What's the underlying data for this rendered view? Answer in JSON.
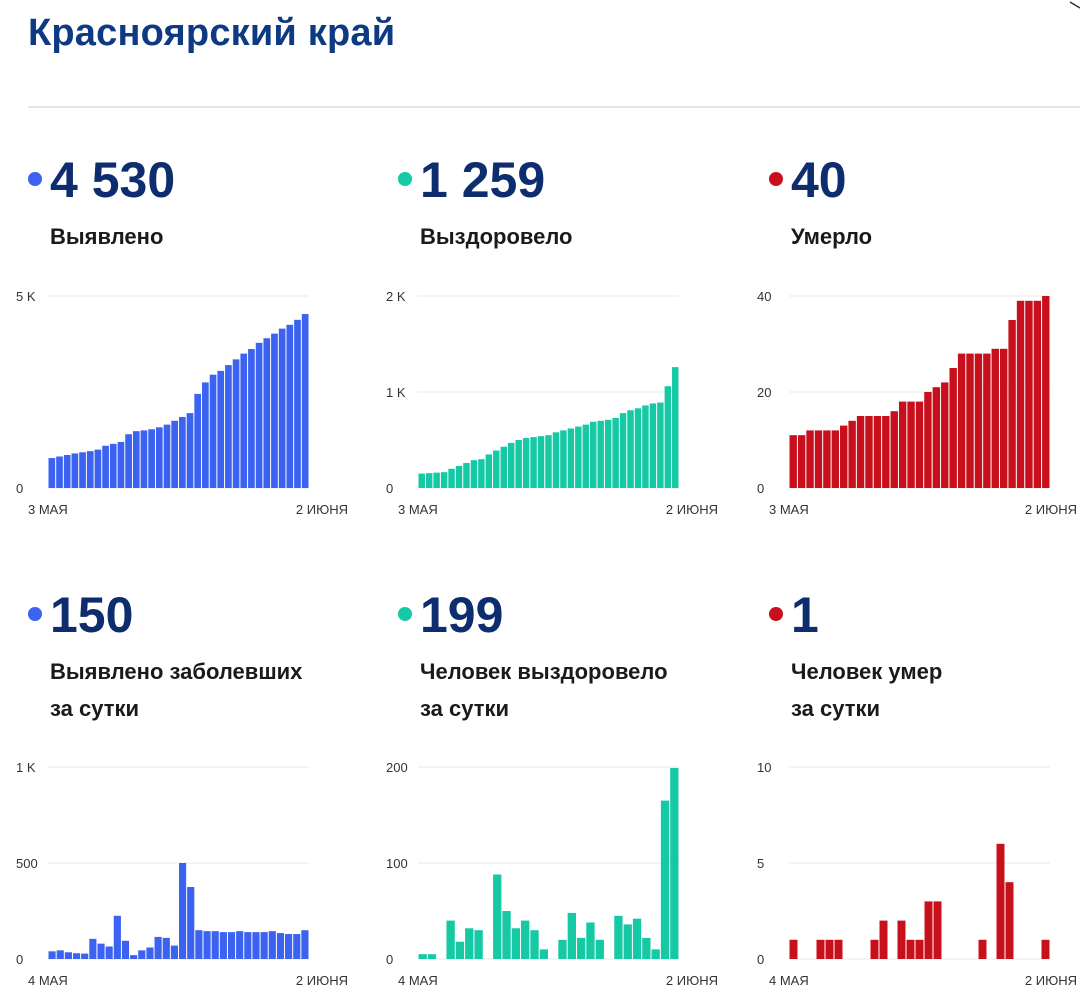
{
  "header": {
    "title": "Красноярский край"
  },
  "colors": {
    "confirmed": "#3b62f0",
    "recovered": "#14c9a3",
    "deaths": "#c8101c",
    "title": "#0d3a82",
    "value": "#0d2d6e"
  },
  "stats": [
    {
      "value": "4 530",
      "label": "Выявлено",
      "color": "#3b62f0",
      "dot_icon": "blue-dot-icon"
    },
    {
      "value": "1 259",
      "label": "Выздоровело",
      "color": "#14c9a3",
      "dot_icon": "green-dot-icon"
    },
    {
      "value": "40",
      "label": "Умерло",
      "color": "#c8101c",
      "dot_icon": "red-dot-icon"
    },
    {
      "value": "150",
      "label": "Выявлено заболевших\nза сутки",
      "color": "#3b62f0",
      "dot_icon": "blue-dot-icon"
    },
    {
      "value": "199",
      "label": "Человек выздоровело\nза сутки",
      "color": "#14c9a3",
      "dot_icon": "green-dot-icon"
    },
    {
      "value": "1",
      "label": "Человек умер\nза сутки",
      "color": "#c8101c",
      "dot_icon": "red-dot-icon"
    }
  ],
  "chart_data": [
    {
      "type": "bar",
      "name": "cumulative-confirmed",
      "color": "#3b62f0",
      "x_start_label": "3 МАЯ",
      "x_end_label": "2 ИЮНЯ",
      "ylim": [
        0,
        5000
      ],
      "y_ticks": [
        {
          "value": 0,
          "label": "0"
        },
        {
          "value": 5000,
          "label": "5 K"
        }
      ],
      "values": [
        780,
        820,
        860,
        900,
        930,
        960,
        1000,
        1100,
        1150,
        1200,
        1400,
        1480,
        1500,
        1530,
        1580,
        1650,
        1750,
        1850,
        1950,
        2450,
        2750,
        2950,
        3050,
        3200,
        3350,
        3500,
        3620,
        3780,
        3900,
        4020,
        4150,
        4250,
        4380,
        4530
      ]
    },
    {
      "type": "bar",
      "name": "cumulative-recovered",
      "color": "#14c9a3",
      "x_start_label": "3 МАЯ",
      "x_end_label": "2 ИЮНЯ",
      "ylim": [
        0,
        2000
      ],
      "y_ticks": [
        {
          "value": 0,
          "label": "0"
        },
        {
          "value": 1000,
          "label": "1 K"
        },
        {
          "value": 2000,
          "label": "2 K"
        }
      ],
      "values": [
        150,
        155,
        160,
        165,
        200,
        230,
        260,
        290,
        300,
        350,
        390,
        430,
        470,
        500,
        520,
        530,
        540,
        550,
        580,
        600,
        620,
        640,
        660,
        690,
        700,
        710,
        730,
        780,
        810,
        830,
        860,
        880,
        890,
        1060,
        1259
      ]
    },
    {
      "type": "bar",
      "name": "cumulative-deaths",
      "color": "#c8101c",
      "x_start_label": "3 МАЯ",
      "x_end_label": "2 ИЮНЯ",
      "ylim": [
        0,
        40
      ],
      "y_ticks": [
        {
          "value": 0,
          "label": "0"
        },
        {
          "value": 20,
          "label": "20"
        },
        {
          "value": 40,
          "label": "40"
        }
      ],
      "values": [
        11,
        11,
        12,
        12,
        12,
        12,
        13,
        14,
        15,
        15,
        15,
        15,
        16,
        18,
        18,
        18,
        20,
        21,
        22,
        25,
        28,
        28,
        28,
        28,
        29,
        29,
        35,
        39,
        39,
        39,
        40
      ]
    },
    {
      "type": "bar",
      "name": "daily-confirmed",
      "color": "#3b62f0",
      "x_start_label": "4 МАЯ",
      "x_end_label": "2 ИЮНЯ",
      "ylim": [
        0,
        1000
      ],
      "y_ticks": [
        {
          "value": 0,
          "label": "0"
        },
        {
          "value": 500,
          "label": "500"
        },
        {
          "value": 1000,
          "label": "1 K"
        }
      ],
      "values": [
        40,
        45,
        35,
        30,
        28,
        105,
        80,
        65,
        225,
        95,
        20,
        45,
        60,
        115,
        110,
        70,
        500,
        375,
        150,
        145,
        145,
        140,
        140,
        145,
        140,
        140,
        140,
        145,
        135,
        130,
        130,
        150
      ]
    },
    {
      "type": "bar",
      "name": "daily-recovered",
      "color": "#14c9a3",
      "x_start_label": "4 МАЯ",
      "x_end_label": "2 ИЮНЯ",
      "ylim": [
        0,
        200
      ],
      "y_ticks": [
        {
          "value": 0,
          "label": "0"
        },
        {
          "value": 100,
          "label": "100"
        },
        {
          "value": 200,
          "label": "200"
        }
      ],
      "values": [
        5,
        5,
        0,
        40,
        18,
        32,
        30,
        0,
        88,
        50,
        32,
        40,
        30,
        10,
        0,
        20,
        48,
        22,
        38,
        20,
        0,
        45,
        36,
        42,
        22,
        10,
        165,
        199
      ]
    },
    {
      "type": "bar",
      "name": "daily-deaths",
      "color": "#c8101c",
      "x_start_label": "4 МАЯ",
      "x_end_label": "2 ИЮНЯ",
      "ylim": [
        0,
        10
      ],
      "y_ticks": [
        {
          "value": 0,
          "label": "0"
        },
        {
          "value": 5,
          "label": "5"
        },
        {
          "value": 10,
          "label": "10"
        }
      ],
      "values": [
        1,
        0,
        0,
        1,
        1,
        1,
        0,
        0,
        0,
        1,
        2,
        0,
        2,
        1,
        1,
        3,
        3,
        0,
        0,
        0,
        0,
        1,
        0,
        6,
        4,
        0,
        0,
        0,
        1
      ]
    }
  ]
}
